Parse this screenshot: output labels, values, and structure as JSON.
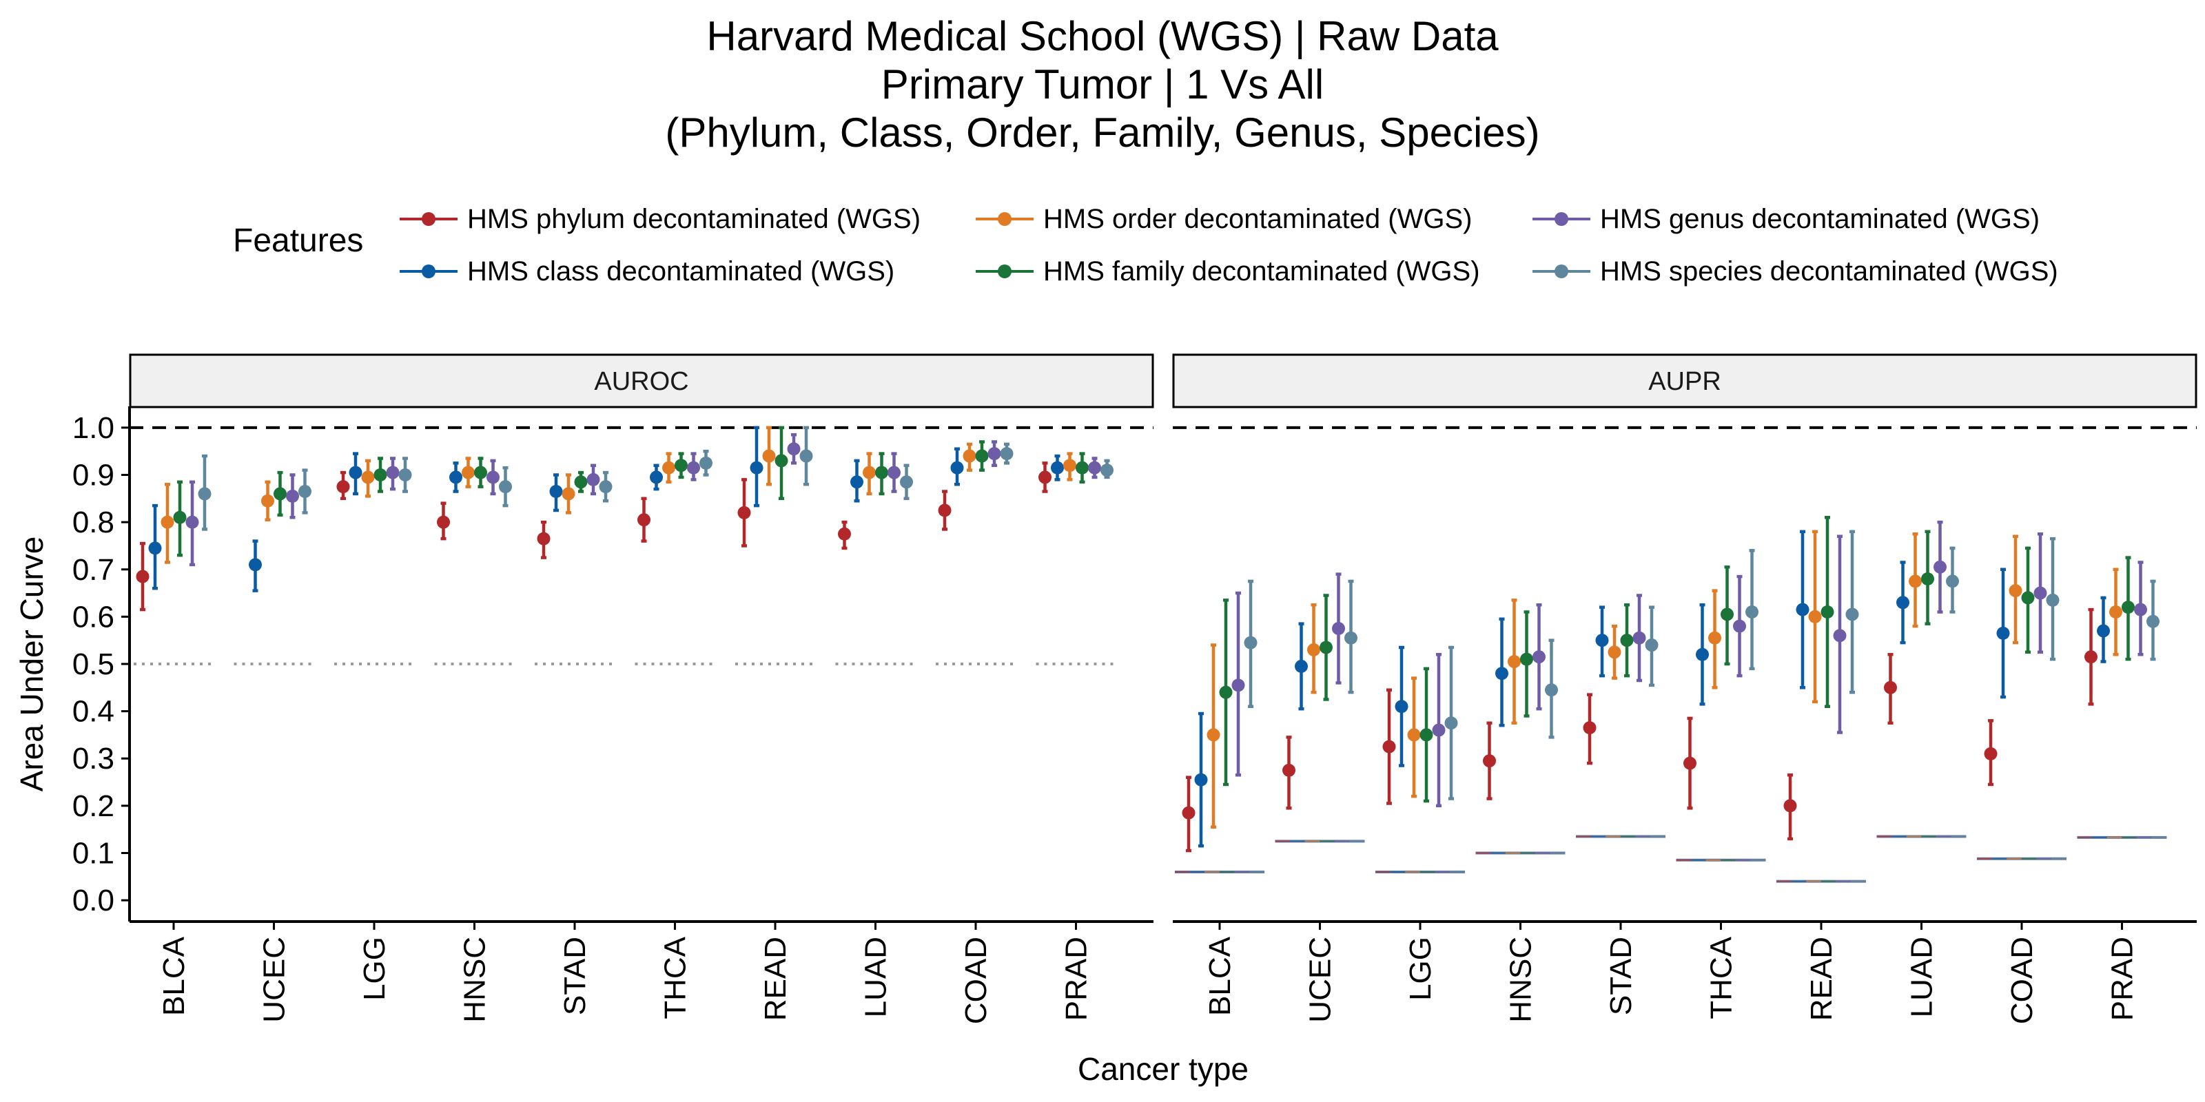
{
  "chart_data": {
    "type": "errorbar",
    "title_lines": [
      "Harvard Medical School (WGS) | Raw Data",
      "Primary Tumor | 1 Vs All",
      "(Phylum, Class, Order, Family, Genus, Species)"
    ],
    "xlabel": "Cancer type",
    "ylabel": "Area Under Curve",
    "ylim": [
      0.0,
      1.0
    ],
    "yticks": [
      "0.0",
      "0.1",
      "0.2",
      "0.3",
      "0.4",
      "0.5",
      "0.6",
      "0.7",
      "0.8",
      "0.9",
      "1.0"
    ],
    "reference_line_value": 1.0,
    "chance_line_auroc": 0.5,
    "legend": {
      "title": "Features",
      "placement": "top",
      "items": [
        "HMS phylum decontaminated (WGS)",
        "HMS class decontaminated (WGS)",
        "HMS order decontaminated (WGS)",
        "HMS family decontaminated (WGS)",
        "HMS genus decontaminated (WGS)",
        "HMS species decontaminated (WGS)"
      ]
    },
    "categories": [
      "BLCA",
      "UCEC",
      "LGG",
      "HNSC",
      "STAD",
      "THCA",
      "READ",
      "LUAD",
      "COAD",
      "PRAD"
    ],
    "panels": [
      {
        "label": "AUROC",
        "series": [
          {
            "name": "HMS phylum decontaminated (WGS)",
            "color": "#B2282A",
            "mean": [
              0.685,
              null,
              0.875,
              0.8,
              0.765,
              0.805,
              0.82,
              0.775,
              0.825,
              0.895
            ],
            "lower": [
              0.615,
              null,
              0.85,
              0.765,
              0.725,
              0.76,
              0.75,
              0.745,
              0.785,
              0.865
            ],
            "upper": [
              0.755,
              null,
              0.905,
              0.84,
              0.8,
              0.85,
              0.89,
              0.8,
              0.865,
              0.925
            ]
          },
          {
            "name": "HMS class decontaminated (WGS)",
            "color": "#0A5BA4",
            "mean": [
              0.745,
              0.71,
              0.905,
              0.895,
              0.865,
              0.895,
              0.915,
              0.885,
              0.915,
              0.915
            ],
            "lower": [
              0.66,
              0.655,
              0.86,
              0.865,
              0.825,
              0.87,
              0.835,
              0.845,
              0.88,
              0.89
            ],
            "upper": [
              0.835,
              0.76,
              0.945,
              0.925,
              0.9,
              0.92,
              1.0,
              0.93,
              0.955,
              0.94
            ]
          },
          {
            "name": "HMS order decontaminated (WGS)",
            "color": "#E07B24",
            "mean": [
              0.8,
              0.845,
              0.895,
              0.905,
              0.86,
              0.915,
              0.94,
              0.905,
              0.94,
              0.92
            ],
            "lower": [
              0.715,
              0.805,
              0.855,
              0.875,
              0.82,
              0.885,
              0.88,
              0.86,
              0.91,
              0.89
            ],
            "upper": [
              0.88,
              0.885,
              0.93,
              0.935,
              0.9,
              0.945,
              1.0,
              0.945,
              0.965,
              0.945
            ]
          },
          {
            "name": "HMS family decontaminated (WGS)",
            "color": "#1A7337",
            "mean": [
              0.81,
              0.86,
              0.9,
              0.905,
              0.885,
              0.92,
              0.93,
              0.905,
              0.94,
              0.915
            ],
            "lower": [
              0.73,
              0.815,
              0.865,
              0.875,
              0.865,
              0.895,
              0.85,
              0.86,
              0.91,
              0.885
            ],
            "upper": [
              0.885,
              0.905,
              0.935,
              0.935,
              0.905,
              0.945,
              1.0,
              0.945,
              0.97,
              0.945
            ]
          },
          {
            "name": "HMS genus decontaminated (WGS)",
            "color": "#6E5CA6",
            "mean": [
              0.8,
              0.855,
              0.905,
              0.895,
              0.89,
              0.915,
              0.955,
              0.905,
              0.945,
              0.915
            ],
            "lower": [
              0.71,
              0.81,
              0.87,
              0.86,
              0.86,
              0.89,
              0.925,
              0.865,
              0.92,
              0.895
            ],
            "upper": [
              0.885,
              0.9,
              0.935,
              0.93,
              0.92,
              0.945,
              0.985,
              0.945,
              0.97,
              0.935
            ]
          },
          {
            "name": "HMS species decontaminated (WGS)",
            "color": "#5E879E",
            "mean": [
              0.86,
              0.865,
              0.9,
              0.875,
              0.875,
              0.925,
              0.94,
              0.885,
              0.945,
              0.91
            ],
            "lower": [
              0.785,
              0.82,
              0.865,
              0.835,
              0.845,
              0.9,
              0.88,
              0.85,
              0.925,
              0.895
            ],
            "upper": [
              0.94,
              0.91,
              0.935,
              0.915,
              0.905,
              0.95,
              1.0,
              0.92,
              0.965,
              0.93
            ]
          }
        ]
      },
      {
        "label": "AUPR",
        "series": [
          {
            "name": "HMS phylum decontaminated (WGS)",
            "color": "#B2282A",
            "mean": [
              0.185,
              0.275,
              0.325,
              0.295,
              0.365,
              0.29,
              0.2,
              0.45,
              0.31,
              0.515
            ],
            "lower": [
              0.105,
              0.195,
              0.205,
              0.215,
              0.29,
              0.195,
              0.13,
              0.375,
              0.245,
              0.415
            ],
            "upper": [
              0.26,
              0.345,
              0.445,
              0.375,
              0.435,
              0.385,
              0.265,
              0.52,
              0.38,
              0.615
            ]
          },
          {
            "name": "HMS class decontaminated (WGS)",
            "color": "#0A5BA4",
            "mean": [
              0.255,
              0.495,
              0.41,
              0.48,
              0.55,
              0.52,
              0.615,
              0.63,
              0.565,
              0.57
            ],
            "lower": [
              0.115,
              0.405,
              0.285,
              0.37,
              0.475,
              0.415,
              0.45,
              0.545,
              0.43,
              0.505
            ],
            "upper": [
              0.395,
              0.585,
              0.535,
              0.595,
              0.62,
              0.625,
              0.78,
              0.715,
              0.7,
              0.64
            ]
          },
          {
            "name": "HMS order decontaminated (WGS)",
            "color": "#E07B24",
            "mean": [
              0.35,
              0.53,
              0.35,
              0.505,
              0.525,
              0.555,
              0.6,
              0.675,
              0.655,
              0.61
            ],
            "lower": [
              0.155,
              0.44,
              0.22,
              0.375,
              0.47,
              0.45,
              0.42,
              0.58,
              0.545,
              0.52
            ],
            "upper": [
              0.54,
              0.625,
              0.47,
              0.635,
              0.58,
              0.655,
              0.78,
              0.775,
              0.77,
              0.7
            ]
          },
          {
            "name": "HMS family decontaminated (WGS)",
            "color": "#1A7337",
            "mean": [
              0.44,
              0.535,
              0.35,
              0.51,
              0.55,
              0.605,
              0.61,
              0.68,
              0.64,
              0.62
            ],
            "lower": [
              0.245,
              0.425,
              0.21,
              0.39,
              0.475,
              0.5,
              0.41,
              0.585,
              0.525,
              0.51
            ],
            "upper": [
              0.635,
              0.645,
              0.49,
              0.61,
              0.625,
              0.705,
              0.81,
              0.78,
              0.745,
              0.725
            ]
          },
          {
            "name": "HMS genus decontaminated (WGS)",
            "color": "#6E5CA6",
            "mean": [
              0.455,
              0.575,
              0.36,
              0.515,
              0.555,
              0.58,
              0.56,
              0.705,
              0.65,
              0.615
            ],
            "lower": [
              0.265,
              0.46,
              0.2,
              0.405,
              0.465,
              0.475,
              0.355,
              0.61,
              0.525,
              0.52
            ],
            "upper": [
              0.65,
              0.69,
              0.52,
              0.625,
              0.645,
              0.685,
              0.77,
              0.8,
              0.775,
              0.715
            ]
          },
          {
            "name": "HMS species decontaminated (WGS)",
            "color": "#5E879E",
            "mean": [
              0.545,
              0.555,
              0.375,
              0.445,
              0.54,
              0.61,
              0.605,
              0.675,
              0.635,
              0.59
            ],
            "lower": [
              0.41,
              0.44,
              0.215,
              0.345,
              0.455,
              0.49,
              0.44,
              0.61,
              0.51,
              0.51
            ],
            "upper": [
              0.675,
              0.675,
              0.535,
              0.55,
              0.62,
              0.74,
              0.78,
              0.745,
              0.765,
              0.675
            ]
          }
        ],
        "baselines": [
          0.06,
          0.125,
          0.06,
          0.1,
          0.135,
          0.085,
          0.04,
          0.135,
          0.088,
          0.133
        ]
      }
    ]
  }
}
